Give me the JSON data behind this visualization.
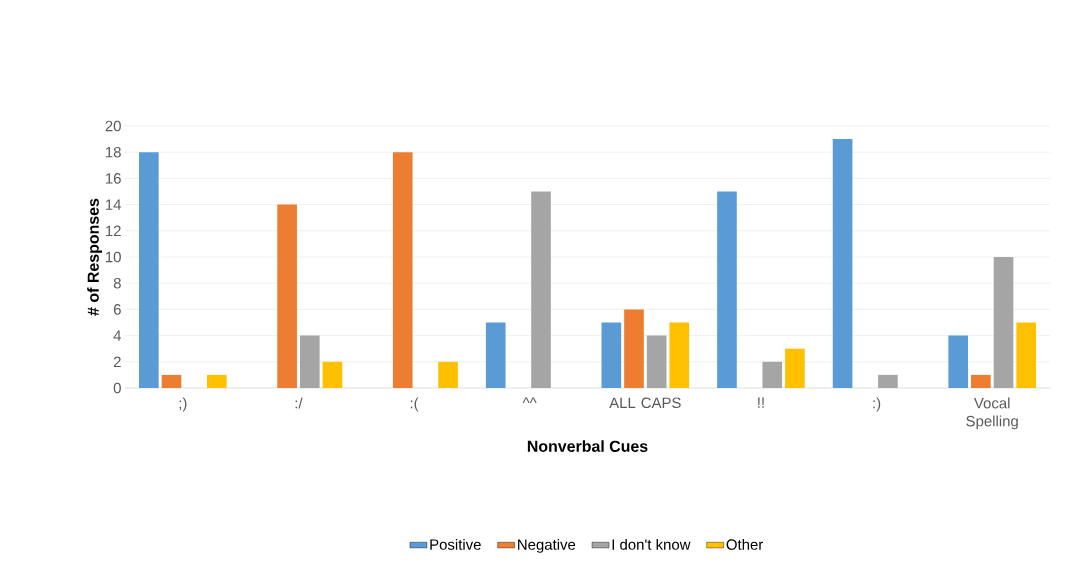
{
  "chart_data": {
    "type": "bar",
    "xlabel": "Nonverbal Cues",
    "ylabel": "# of Responses",
    "categories": [
      ";)",
      ":/",
      ":(",
      "^^",
      "ALL CAPS",
      "!!",
      ":)",
      "Vocal Spelling"
    ],
    "series": [
      {
        "name": "Positive",
        "color": "#5b9bd5",
        "values": [
          18,
          0,
          0,
          5,
          5,
          15,
          19,
          4
        ]
      },
      {
        "name": "Negative",
        "color": "#ed7d31",
        "values": [
          1,
          14,
          18,
          0,
          6,
          0,
          0,
          1
        ]
      },
      {
        "name": "I don't know",
        "color": "#a5a5a5",
        "values": [
          0,
          4,
          0,
          15,
          4,
          2,
          1,
          10
        ]
      },
      {
        "name": "Other",
        "color": "#ffc000",
        "values": [
          1,
          2,
          2,
          0,
          5,
          3,
          0,
          5
        ]
      }
    ],
    "ylim": [
      0,
      20
    ],
    "yticks": [
      0,
      2,
      4,
      6,
      8,
      10,
      12,
      14,
      16,
      18,
      20
    ],
    "grid": "y",
    "legend": "bottom"
  }
}
